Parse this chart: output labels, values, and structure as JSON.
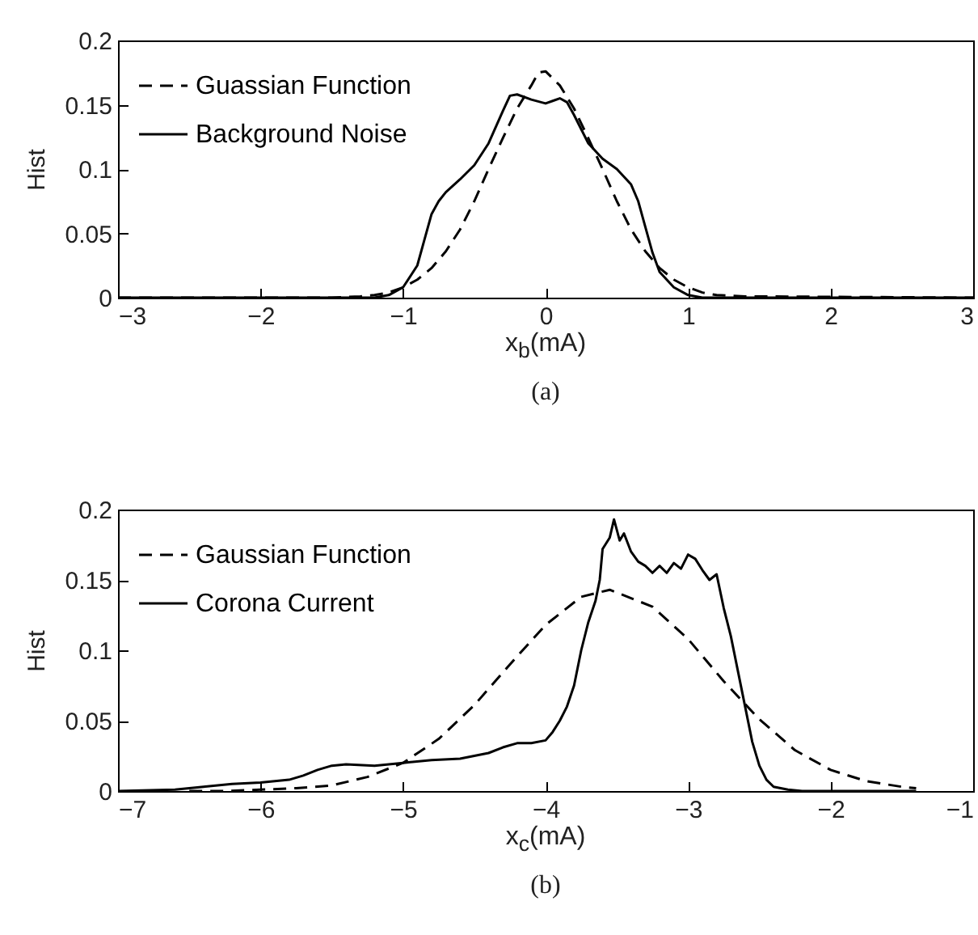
{
  "chart_data": [
    {
      "type": "line",
      "xlabel": "x$_{b}$(mA)",
      "ylabel": "Hist",
      "annotations": [
        "(a)"
      ],
      "xlim": [
        -3,
        3
      ],
      "xticks": [
        -3,
        -2,
        -1,
        0,
        1,
        2,
        3
      ],
      "ylim": [
        0,
        0.2
      ],
      "yticks": [
        0,
        0.05,
        0.1,
        0.15,
        0.2
      ],
      "legend": "top left",
      "grid": false,
      "series": [
        {
          "name": "Guassian Function",
          "color": "#000000",
          "line_style": "dashed",
          "x": [
            -3,
            -1.5,
            -1.3,
            -1.2,
            -1.1,
            -1,
            -0.9,
            -0.8,
            -0.7,
            -0.6,
            -0.5,
            -0.4,
            -0.3,
            -0.2,
            -0.1,
            -0.05,
            0,
            0.1,
            0.2,
            0.3,
            0.4,
            0.5,
            0.6,
            0.7,
            0.8,
            0.9,
            1,
            1.1,
            1.2,
            1.4,
            3
          ],
          "values": [
            0,
            0,
            0.001,
            0.002,
            0.004,
            0.008,
            0.014,
            0.023,
            0.036,
            0.053,
            0.075,
            0.1,
            0.124,
            0.147,
            0.165,
            0.175,
            0.176,
            0.165,
            0.147,
            0.124,
            0.1,
            0.075,
            0.053,
            0.036,
            0.023,
            0.014,
            0.008,
            0.004,
            0.002,
            0.001,
            0
          ]
        },
        {
          "name": "Background Noise",
          "color": "#000000",
          "line_style": "solid",
          "x": [
            -3,
            -1.2,
            -1.1,
            -1,
            -0.9,
            -0.85,
            -0.8,
            -0.75,
            -0.7,
            -0.6,
            -0.5,
            -0.4,
            -0.3,
            -0.25,
            -0.2,
            -0.1,
            0,
            0.05,
            0.1,
            0.15,
            0.2,
            0.3,
            0.4,
            0.5,
            0.6,
            0.65,
            0.7,
            0.75,
            0.8,
            0.9,
            1,
            1.1,
            3
          ],
          "values": [
            0,
            0,
            0.002,
            0.008,
            0.025,
            0.045,
            0.065,
            0.075,
            0.082,
            0.092,
            0.103,
            0.12,
            0.145,
            0.157,
            0.158,
            0.154,
            0.151,
            0.153,
            0.155,
            0.152,
            0.142,
            0.12,
            0.108,
            0.1,
            0.088,
            0.075,
            0.055,
            0.035,
            0.02,
            0.008,
            0.002,
            0,
            0
          ]
        }
      ]
    },
    {
      "type": "line",
      "xlabel": "x$_{c}$(mA)",
      "ylabel": "Hist",
      "annotations": [
        "(b)"
      ],
      "xlim": [
        -7,
        -1
      ],
      "xticks": [
        -7,
        -6,
        -5,
        -4,
        -3,
        -2,
        -1
      ],
      "ylim": [
        0,
        0.2
      ],
      "yticks": [
        0,
        0.05,
        0.1,
        0.15,
        0.2
      ],
      "legend": "top left",
      "grid": false,
      "series": [
        {
          "name": "Gaussian Function",
          "color": "#000000",
          "line_style": "dashed",
          "x": [
            -6.5,
            -6.25,
            -6,
            -5.75,
            -5.5,
            -5.25,
            -5,
            -4.75,
            -4.5,
            -4.25,
            -4,
            -3.75,
            -3.55,
            -3.25,
            -3,
            -2.75,
            -2.5,
            -2.25,
            -2,
            -1.75,
            -1.5,
            -1.4
          ],
          "values": [
            0,
            0,
            0.001,
            0.002,
            0.004,
            0.01,
            0.02,
            0.037,
            0.061,
            0.09,
            0.118,
            0.138,
            0.143,
            0.131,
            0.108,
            0.078,
            0.051,
            0.029,
            0.015,
            0.007,
            0.003,
            0.002
          ]
        },
        {
          "name": "Corona Current",
          "color": "#000000",
          "line_style": "solid",
          "x": [
            -7,
            -6.6,
            -6.4,
            -6.2,
            -6,
            -5.8,
            -5.7,
            -5.6,
            -5.5,
            -5.4,
            -5.2,
            -5,
            -4.8,
            -4.6,
            -4.4,
            -4.3,
            -4.2,
            -4.1,
            -4,
            -3.95,
            -3.9,
            -3.85,
            -3.8,
            -3.75,
            -3.7,
            -3.65,
            -3.62,
            -3.6,
            -3.55,
            -3.52,
            -3.48,
            -3.45,
            -3.4,
            -3.35,
            -3.3,
            -3.25,
            -3.2,
            -3.15,
            -3.1,
            -3.05,
            -3,
            -2.95,
            -2.9,
            -2.85,
            -2.8,
            -2.75,
            -2.7,
            -2.65,
            -2.6,
            -2.55,
            -2.5,
            -2.45,
            -2.4,
            -2.3,
            -2.2,
            -1.4
          ],
          "values": [
            0,
            0.001,
            0.003,
            0.005,
            0.006,
            0.008,
            0.011,
            0.015,
            0.018,
            0.019,
            0.018,
            0.02,
            0.022,
            0.023,
            0.027,
            0.031,
            0.034,
            0.034,
            0.036,
            0.042,
            0.05,
            0.06,
            0.075,
            0.1,
            0.12,
            0.135,
            0.15,
            0.172,
            0.18,
            0.193,
            0.178,
            0.183,
            0.17,
            0.163,
            0.16,
            0.155,
            0.16,
            0.155,
            0.162,
            0.158,
            0.168,
            0.165,
            0.157,
            0.15,
            0.154,
            0.13,
            0.11,
            0.085,
            0.06,
            0.035,
            0.018,
            0.008,
            0.003,
            0.001,
            0,
            0
          ]
        }
      ]
    }
  ]
}
